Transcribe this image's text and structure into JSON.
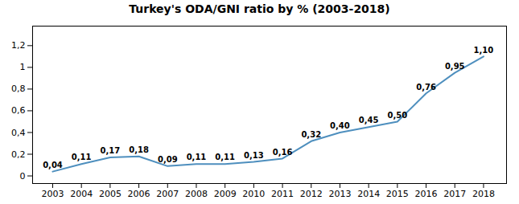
{
  "chart_data": {
    "type": "line",
    "title": "Turkey's ODA/GNI ratio by % (2003-2018)",
    "x": [
      2003,
      2004,
      2005,
      2006,
      2007,
      2008,
      2009,
      2010,
      2011,
      2012,
      2013,
      2014,
      2015,
      2016,
      2017,
      2018
    ],
    "values": [
      0.04,
      0.11,
      0.17,
      0.18,
      0.09,
      0.11,
      0.11,
      0.13,
      0.16,
      0.32,
      0.4,
      0.45,
      0.5,
      0.76,
      0.95,
      1.1
    ],
    "value_labels": [
      "0,04",
      "0,11",
      "0,17",
      "0,18",
      "0,09",
      "0,11",
      "0,11",
      "0,13",
      "0,16",
      "0,32",
      "0,40",
      "0,45",
      "0,50",
      "0,76",
      "0,95",
      "1,10"
    ],
    "color": "#4e8fbe",
    "xlim": [
      2002.3,
      2018.8
    ],
    "xticks": [
      2003,
      2004,
      2005,
      2006,
      2007,
      2008,
      2009,
      2010,
      2011,
      2012,
      2013,
      2014,
      2015,
      2016,
      2017,
      2018
    ],
    "ylim": [
      -0.07,
      1.38
    ],
    "yticks": [
      0,
      {
        "value": 0.2,
        "label": "0,2"
      },
      {
        "value": 0.4,
        "label": "0,4"
      },
      {
        "value": 0.6,
        "label": "0,6"
      },
      {
        "value": 0.8,
        "label": "0,8"
      },
      1,
      {
        "value": 1.2,
        "label": "1,2"
      }
    ],
    "data_labels": true,
    "grid": false
  }
}
